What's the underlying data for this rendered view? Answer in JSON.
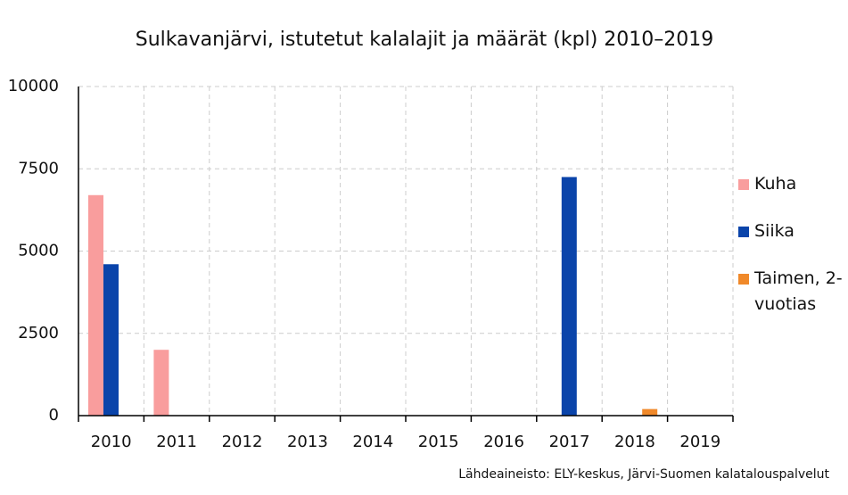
{
  "chart_data": {
    "type": "bar",
    "title": "Sulkavanjärvi, istutetut kalalajit ja määrät (kpl) 2010–2019",
    "categories": [
      "2010",
      "2011",
      "2012",
      "2013",
      "2014",
      "2015",
      "2016",
      "2017",
      "2018",
      "2019"
    ],
    "series": [
      {
        "name": "Kuha",
        "color": "#f99d9d",
        "values": [
          6700,
          2000,
          null,
          null,
          null,
          null,
          null,
          null,
          null,
          null
        ]
      },
      {
        "name": "Siika",
        "color": "#0a44aa",
        "values": [
          4600,
          null,
          null,
          null,
          null,
          null,
          null,
          7250,
          null,
          null
        ]
      },
      {
        "name": "Taimen, 2-vuotias",
        "color": "#f0892a",
        "values": [
          null,
          null,
          null,
          null,
          null,
          null,
          null,
          null,
          200,
          null
        ]
      }
    ],
    "ylim": [
      0,
      10000
    ],
    "yticks": [
      0,
      2500,
      5000,
      7500,
      10000
    ],
    "grid": true,
    "source": "Lähdeaineisto: ELY-keskus, Järvi-Suomen kalatalouspalvelut"
  }
}
